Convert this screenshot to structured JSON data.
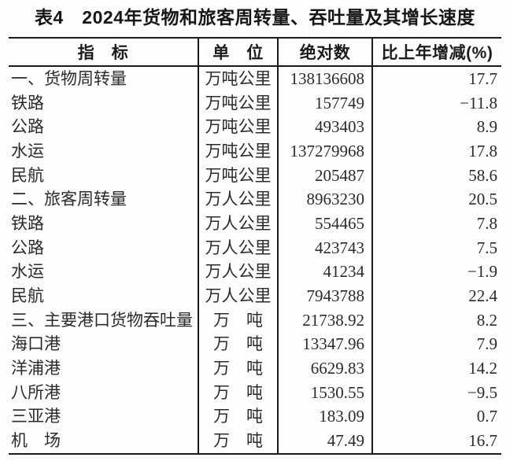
{
  "title": "表4　2024年货物和旅客周转量、吞吐量及其增长速度",
  "table": {
    "columns": [
      "指　标",
      "单　位",
      "绝对数",
      "比上年增减(%)"
    ],
    "rows": [
      {
        "indicator": "一、货物周转量",
        "unit": "万吨公里",
        "value": "138136608",
        "change": "17.7"
      },
      {
        "indicator": "铁路",
        "unit": "万吨公里",
        "value": "157749",
        "change": "−11.8"
      },
      {
        "indicator": "公路",
        "unit": "万吨公里",
        "value": "493403",
        "change": "8.9"
      },
      {
        "indicator": "水运",
        "unit": "万吨公里",
        "value": "137279968",
        "change": "17.8"
      },
      {
        "indicator": "民航",
        "unit": "万吨公里",
        "value": "205487",
        "change": "58.6"
      },
      {
        "indicator": "二、旅客周转量",
        "unit": "万人公里",
        "value": "8963230",
        "change": "20.5"
      },
      {
        "indicator": "铁路",
        "unit": "万人公里",
        "value": "554465",
        "change": "7.8"
      },
      {
        "indicator": "公路",
        "unit": "万人公里",
        "value": "423743",
        "change": "7.5"
      },
      {
        "indicator": "水运",
        "unit": "万人公里",
        "value": "41234",
        "change": "−1.9"
      },
      {
        "indicator": "民航",
        "unit": "万人公里",
        "value": "7943788",
        "change": "22.4"
      },
      {
        "indicator": "三、主要港口货物吞吐量",
        "unit": "万　吨",
        "value": "21738.92",
        "change": "8.2"
      },
      {
        "indicator": "海口港",
        "unit": "万　吨",
        "value": "13347.96",
        "change": "7.9"
      },
      {
        "indicator": "洋浦港",
        "unit": "万　吨",
        "value": "6629.83",
        "change": "14.2"
      },
      {
        "indicator": "八所港",
        "unit": "万　吨",
        "value": "1530.55",
        "change": "−9.5"
      },
      {
        "indicator": "三亚港",
        "unit": "万　吨",
        "value": "183.09",
        "change": "0.7"
      },
      {
        "indicator": "机　场",
        "unit": "万　吨",
        "value": "47.49",
        "change": "16.7"
      }
    ]
  }
}
